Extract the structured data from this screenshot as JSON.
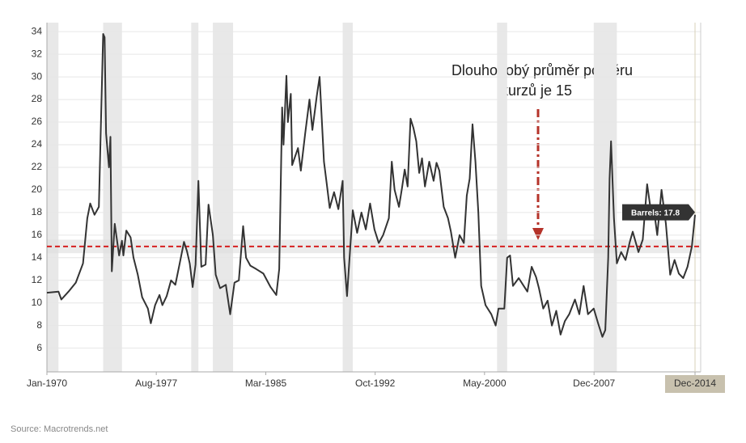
{
  "chart_data": {
    "type": "line",
    "series": [
      {
        "name": "Barrels",
        "color": "#333333",
        "x": [
          1970.0,
          1970.8,
          1971.0,
          1971.5,
          1972.0,
          1972.5,
          1972.8,
          1973.0,
          1973.3,
          1973.6,
          1973.9,
          1974.0,
          1974.1,
          1974.3,
          1974.4,
          1974.5,
          1974.7,
          1975.0,
          1975.2,
          1975.3,
          1975.5,
          1975.8,
          1976.0,
          1976.3,
          1976.6,
          1977.0,
          1977.2,
          1977.5,
          1977.8,
          1978.0,
          1978.3,
          1978.6,
          1978.9,
          1979.2,
          1979.5,
          1979.7,
          1979.9,
          1980.1,
          1980.3,
          1980.5,
          1980.7,
          1981.0,
          1981.2,
          1981.5,
          1981.7,
          1982.0,
          1982.4,
          1982.7,
          1983.0,
          1983.3,
          1983.6,
          1983.8,
          1984.1,
          1984.5,
          1985.0,
          1985.5,
          1985.9,
          1986.1,
          1986.3,
          1986.4,
          1986.6,
          1986.7,
          1986.9,
          1987.0,
          1987.4,
          1987.6,
          1987.9,
          1988.2,
          1988.4,
          1988.7,
          1988.9,
          1989.2,
          1989.4,
          1989.6,
          1989.9,
          1990.2,
          1990.5,
          1990.6,
          1990.8,
          1991.0,
          1991.2,
          1991.5,
          1991.8,
          1992.1,
          1992.4,
          1992.7,
          1993.0,
          1993.3,
          1993.7,
          1993.9,
          1994.1,
          1994.4,
          1994.6,
          1994.8,
          1995.0,
          1995.2,
          1995.4,
          1995.6,
          1995.8,
          1996.0,
          1996.2,
          1996.5,
          1996.8,
          1997.0,
          1997.2,
          1997.5,
          1997.8,
          1998.0,
          1998.3,
          1998.6,
          1998.9,
          1999.1,
          1999.3,
          1999.5,
          1999.7,
          1999.9,
          2000.1,
          2000.4,
          2000.8,
          2001.1,
          2001.3,
          2001.7,
          2001.9,
          2002.1,
          2002.3,
          2002.7,
          2003.0,
          2003.3,
          2003.6,
          2003.9,
          2004.1,
          2004.4,
          2004.7,
          2005.0,
          2005.3,
          2005.6,
          2005.9,
          2006.2,
          2006.6,
          2006.9,
          2007.2,
          2007.5,
          2007.9,
          2008.2,
          2008.5,
          2008.7,
          2008.9,
          2009.0,
          2009.1,
          2009.3,
          2009.5,
          2009.8,
          2010.1,
          2010.4,
          2010.6,
          2011.0,
          2011.3,
          2011.6,
          2011.9,
          2012.1,
          2012.3,
          2012.6,
          2012.9,
          2013.2,
          2013.5,
          2013.8,
          2014.1,
          2014.4,
          2014.7,
          2014.92
        ],
        "values": [
          10.9,
          11.0,
          10.3,
          11.0,
          11.8,
          13.5,
          17.5,
          18.8,
          17.8,
          18.5,
          33.8,
          33.5,
          25,
          22,
          24.7,
          12.8,
          17,
          14.2,
          15.5,
          14.2,
          16.4,
          15.8,
          14.0,
          12.5,
          10.5,
          9.5,
          8.2,
          9.8,
          10.7,
          9.8,
          10.6,
          12.0,
          11.6,
          13.5,
          15.4,
          14.6,
          13.5,
          11.4,
          13.4,
          20.8,
          13.2,
          13.4,
          18.7,
          16.0,
          12.5,
          11.3,
          11.6,
          9.0,
          11.8,
          12.0,
          16.8,
          14.0,
          13.3,
          13.0,
          12.6,
          11.4,
          10.7,
          13.0,
          27.3,
          24.0,
          30.1,
          26.0,
          28.5,
          22.2,
          23.7,
          21.7,
          25.0,
          28.0,
          25.3,
          28.3,
          30.0,
          22.5,
          20.5,
          18.4,
          19.8,
          18.3,
          20.8,
          14.0,
          10.6,
          14.5,
          18.2,
          16.2,
          18.0,
          16.5,
          18.8,
          16.5,
          15.3,
          16.0,
          17.5,
          22.5,
          20.0,
          18.5,
          20.1,
          21.8,
          20.3,
          26.3,
          25.5,
          24.3,
          21.5,
          22.8,
          20.3,
          22.5,
          20.8,
          22.4,
          21.7,
          18.5,
          17.5,
          16.3,
          14.0,
          16.0,
          15.3,
          19.5,
          21.0,
          25.8,
          22.5,
          18.0,
          11.5,
          9.8,
          9.0,
          8.0,
          9.5,
          9.5,
          14.0,
          14.2,
          11.5,
          12.2,
          11.6,
          11.0,
          13.2,
          12.3,
          11.3,
          9.5,
          10.2,
          8.0,
          9.3,
          7.2,
          8.4,
          9.0,
          10.3,
          9.0,
          11.5,
          9.0,
          9.5,
          8.2,
          7.0,
          7.6,
          14.0,
          21.0,
          24.3,
          17.5,
          13.5,
          14.5,
          13.8,
          15.4,
          16.3,
          14.5,
          15.6,
          20.5,
          17.8,
          18.0,
          16.0,
          20.0,
          17.0,
          12.5,
          13.8,
          12.6,
          12.2,
          13.2,
          15.0,
          17.8
        ]
      }
    ],
    "tooltip": "Barrels: 17.8",
    "average": 15,
    "annotation": [
      "Dlouhodobý průměr poměru",
      "kurzů je 15"
    ],
    "recessions": [
      [
        1970.0,
        1970.8
      ],
      [
        1973.9,
        1975.2
      ],
      [
        1980.0,
        1980.5
      ],
      [
        1981.5,
        1982.9
      ],
      [
        1990.5,
        1991.2
      ],
      [
        2001.2,
        2001.9
      ],
      [
        2007.9,
        2009.5
      ]
    ],
    "xlim": [
      1970.0,
      2014.92
    ],
    "xticks": [
      {
        "value": 1970.0,
        "label": "Jan-1970"
      },
      {
        "value": 1977.58,
        "label": "Aug-1977"
      },
      {
        "value": 1985.17,
        "label": "Mar-1985"
      },
      {
        "value": 1992.75,
        "label": "Oct-1992"
      },
      {
        "value": 2000.33,
        "label": "May-2000"
      },
      {
        "value": 2007.92,
        "label": "Dec-2007"
      },
      {
        "value": 2014.92,
        "label": "Dec-2014"
      }
    ],
    "ylim": [
      3.9,
      34.8
    ],
    "yticks": [
      6,
      8,
      10,
      12,
      14,
      16,
      18,
      20,
      22,
      24,
      26,
      28,
      30,
      32,
      34
    ],
    "grid": true,
    "source": "Source: Macrotrends.net"
  }
}
